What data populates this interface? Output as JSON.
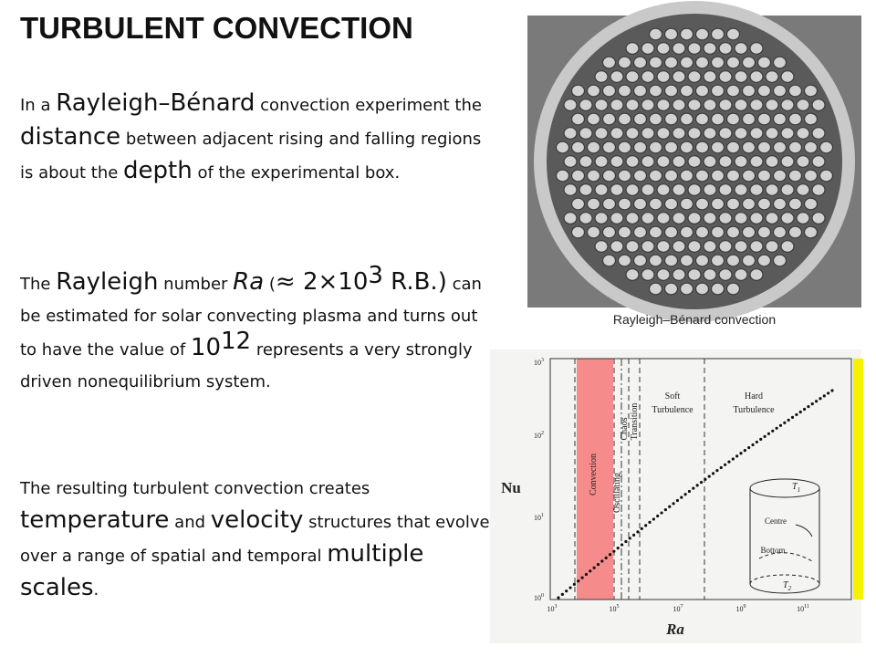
{
  "title": "TURBULENT CONVECTION",
  "paragraphs": [
    [
      "In a ",
      "Rayleigh–Bénard",
      " convection experiment the ",
      "distance",
      " between adjacent rising and falling regions is about the ",
      "depth",
      " of the experimental box."
    ],
    [
      "The ",
      "Rayleigh",
      " number ",
      "Ra",
      " (",
      "≈ 2×10",
      "3",
      " R.B.)",
      " can be estimated for solar convecting plasma and turns out to have the value of ",
      "10",
      "12",
      " represents a very strongly driven nonequilibrium system."
    ],
    [
      "The resulting turbulent convection creates ",
      "temperature",
      " and ",
      "velocity",
      " structures that evolve over a range of spatial and temporal ",
      "multiple scales",
      "."
    ]
  ],
  "photo_caption": "Rayleigh–Bénard convection",
  "graph": {
    "y_label": "Nu",
    "x_label": "Ra",
    "x_ticks": [
      {
        "base": "10",
        "exp": "3"
      },
      {
        "base": "10",
        "exp": "5"
      },
      {
        "base": "10",
        "exp": "7"
      },
      {
        "base": "10",
        "exp": "9"
      },
      {
        "base": "10",
        "exp": "11"
      }
    ],
    "y_ticks": [
      {
        "base": "10",
        "exp": "3"
      },
      {
        "base": "10",
        "exp": "2"
      },
      {
        "base": "10",
        "exp": "1"
      },
      {
        "base": "10",
        "exp": "0"
      }
    ],
    "regions": [
      "Convection",
      "Oscillating",
      "Chaos",
      "Transition"
    ],
    "soft": [
      "Soft",
      "Turbulence"
    ],
    "hard": [
      "Hard",
      "Turbulence"
    ],
    "inset": {
      "top": {
        "base": "T",
        "sub": "1"
      },
      "bottom": {
        "base": "T",
        "sub": "2"
      },
      "centre": "Centre",
      "bottom_label": "Bottom"
    }
  }
}
